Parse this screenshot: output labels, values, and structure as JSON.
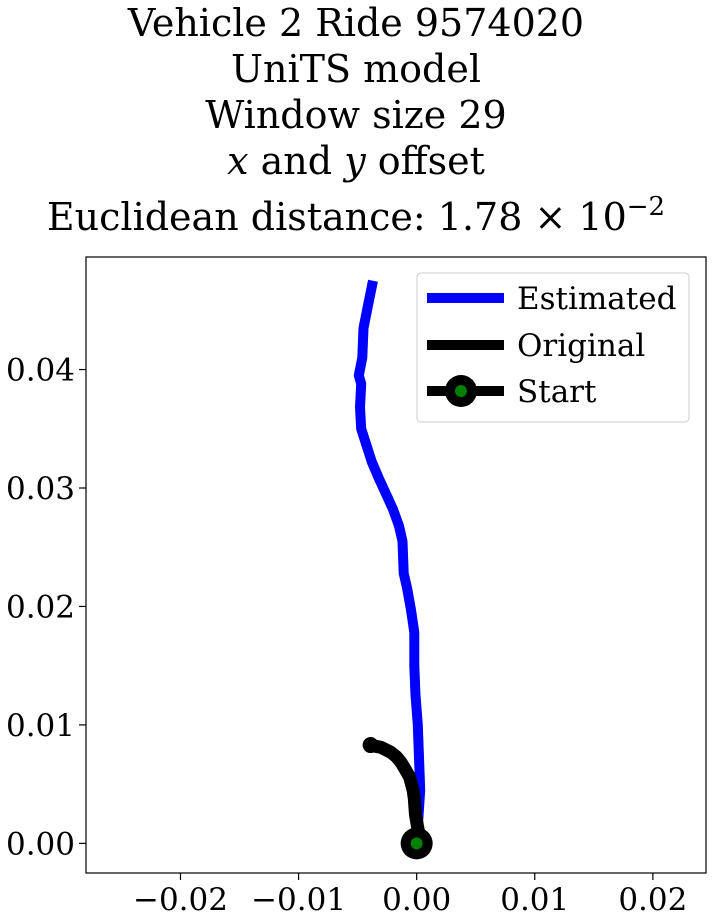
{
  "title_lines": {
    "line1": "Vehicle 2 Ride 9574020",
    "line2": "UniTS model",
    "line3": "Window size 29",
    "line4_var_x": "x",
    "line4_and": " and ",
    "line4_var_y": "y",
    "line4_rest": " offset",
    "line5_prefix": "Euclidean distance: ",
    "line5_mantissa": "1.78",
    "line5_times": " × 10",
    "line5_exponent": "−2"
  },
  "chart_data": {
    "type": "line",
    "title": "Vehicle 2 Ride 9574020 UniTS model Window size 29 x and y offset Euclidean distance: 1.78 × 10^-2",
    "xlabel": "",
    "ylabel": "",
    "xlim": [
      -0.028,
      0.0245
    ],
    "ylim": [
      -0.0025,
      0.0495
    ],
    "x_ticks": [
      -0.02,
      -0.01,
      0.0,
      0.01,
      0.02
    ],
    "x_tick_labels": [
      "−0.02",
      "−0.01",
      "0.00",
      "0.01",
      "0.02"
    ],
    "y_ticks": [
      0.0,
      0.01,
      0.02,
      0.03,
      0.04
    ],
    "y_tick_labels": [
      "0.00",
      "0.01",
      "0.02",
      "0.03",
      "0.04"
    ],
    "grid": false,
    "legend_position": "top-right",
    "series": [
      {
        "name": "Estimated",
        "color": "#0000ff",
        "x": [
          0.0,
          0.0003,
          0.0001,
          -0.0001,
          -0.0002,
          -0.0002,
          -0.0003,
          -0.0005,
          -0.0008,
          -0.0011,
          -0.0012,
          -0.0015,
          -0.002,
          -0.0025,
          -0.0032,
          -0.0038,
          -0.0047,
          -0.0048,
          -0.0047,
          -0.0049,
          -0.0046,
          -0.0045,
          -0.0041,
          -0.0037
        ],
        "y": [
          0.0,
          0.0045,
          0.01,
          0.0125,
          0.015,
          0.0178,
          0.0185,
          0.0198,
          0.0215,
          0.0228,
          0.0255,
          0.0268,
          0.0282,
          0.0293,
          0.0308,
          0.0322,
          0.035,
          0.0368,
          0.0388,
          0.0395,
          0.041,
          0.0435,
          0.0455,
          0.0475
        ]
      },
      {
        "name": "Original",
        "color": "#000000",
        "x": [
          0.0,
          0.0002,
          0.0001,
          -0.0001,
          -0.0002,
          -0.0003,
          -0.0006,
          -0.001,
          -0.0013,
          -0.0017,
          -0.0022,
          -0.0026,
          -0.003,
          -0.0035,
          -0.0039
        ],
        "y": [
          0.0,
          0.0008,
          0.0013,
          0.0024,
          0.0038,
          0.0045,
          0.0056,
          0.0063,
          0.0068,
          0.0073,
          0.0077,
          0.0079,
          0.0081,
          0.0082,
          0.0083
        ]
      },
      {
        "name": "Start",
        "color": "#000000",
        "marker_face": "#008000",
        "x": [
          0.0
        ],
        "y": [
          0.0
        ]
      }
    ]
  }
}
